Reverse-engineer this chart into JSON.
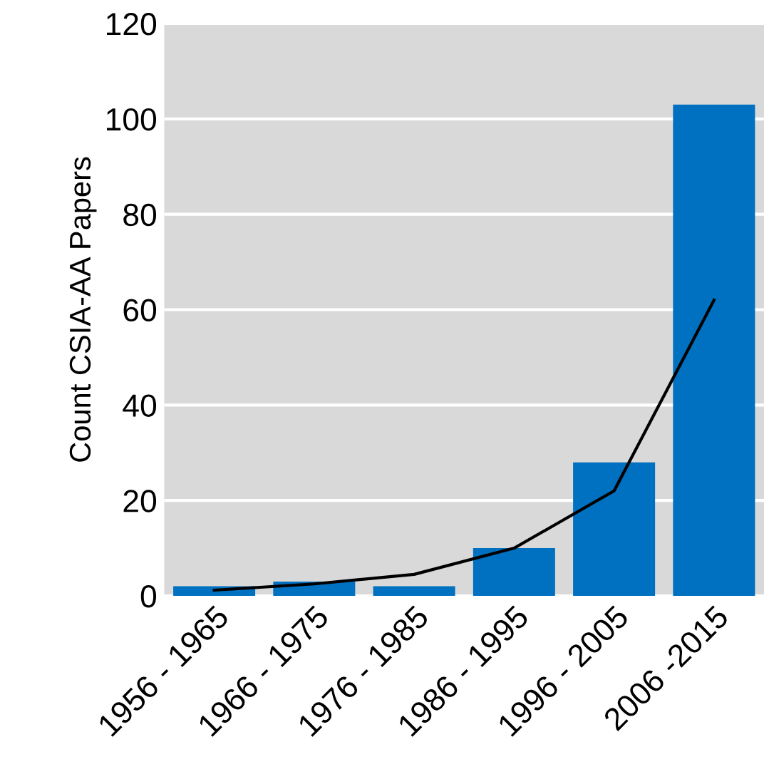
{
  "chart_data": {
    "type": "bar",
    "ylabel": "Count CSIA-AA Papers",
    "categories": [
      "1956 - 1965",
      "1966 - 1975",
      "1976 - 1985",
      "1986 - 1995",
      "1996 - 2005",
      "2006 -2015"
    ],
    "series": [
      {
        "color": "#0070c0",
        "values": [
          2,
          3,
          2,
          10,
          28,
          103
        ]
      },
      {
        "type": "line",
        "color": "#000000",
        "values": [
          1.2,
          2.5,
          4.5,
          10,
          22,
          62
        ]
      }
    ],
    "ylim": [
      0,
      120
    ],
    "yticks": [
      0,
      20,
      40,
      60,
      80,
      100,
      120
    ],
    "grid": "y"
  }
}
